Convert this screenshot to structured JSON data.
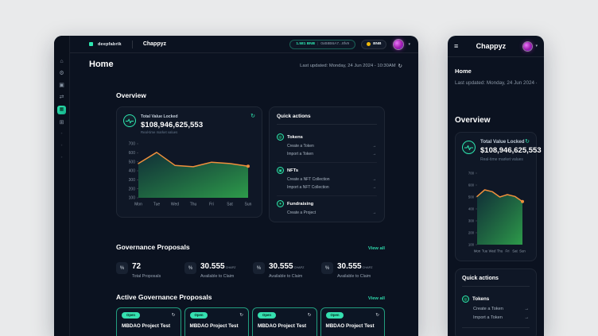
{
  "icons": {
    "home": "⌂",
    "settings": "⚙",
    "assets": "▣",
    "transfers": "⇄",
    "governance": "▦",
    "apps": "⊞",
    "dot": "•",
    "hamburger": "≡",
    "chevron_down": "▾",
    "refresh": "↻",
    "arrow_right": "→",
    "stat": "%",
    "token": "◎",
    "nft": "▣",
    "fundraising": "✦",
    "divider": "|"
  },
  "colors": {
    "accent": "#2EE6B0",
    "orange": "#EF8F3C",
    "bnb_gold": "#F0B90B",
    "frame_bg": "#0B1220",
    "card_bg": "#0F1726",
    "page_bg": "#E9EAEB"
  },
  "desktop": {
    "topbar": {
      "brand": "deepfabrik",
      "app": "Chappyz",
      "wallet_balance": "1.581 BNB",
      "wallet_address": "0xB8B6A7...8fv9",
      "network": "BNB"
    },
    "header": {
      "title": "Home",
      "last_updated": "Last updated: Monday, 24 Jun 2024 - 10:30AM"
    },
    "overview": {
      "title": "Overview",
      "tvl_label": "Total Value Locked",
      "tvl_value": "$108,946,625,553",
      "tvl_sub": "Real-time market values",
      "qa_title": "Quick actions",
      "groups": [
        {
          "name": "Tokens",
          "items": [
            "Create a Token",
            "Import a Token"
          ]
        },
        {
          "name": "NFTs",
          "items": [
            "Create a NFT Collection",
            "Import a NFT Collection"
          ]
        },
        {
          "name": "Fundraising",
          "items": [
            "Create a Project"
          ]
        }
      ]
    },
    "governance": {
      "title": "Governance Proposals",
      "view_all": "View all",
      "stats": [
        {
          "value": "72",
          "unit": "",
          "label": "Total Proposals"
        },
        {
          "value": "30.555",
          "unit": "CHAPZ",
          "label": "Available to Claim"
        },
        {
          "value": "30.555",
          "unit": "CHAPZ",
          "label": "Available to Claim"
        },
        {
          "value": "30.555",
          "unit": "CHAPZ",
          "label": "Available to Claim"
        }
      ]
    },
    "active": {
      "title": "Active Governance Proposals",
      "view_all": "View all",
      "cards": [
        {
          "status": "Open",
          "title": "MBDAO Project Test"
        },
        {
          "status": "Open",
          "title": "MBDAO Project Test"
        },
        {
          "status": "Open",
          "title": "MBDAO Project Test"
        },
        {
          "status": "Open",
          "title": "MBDAO Project Test"
        }
      ]
    }
  },
  "mobile": {
    "topbar": {
      "app": "Chappyz"
    },
    "header": {
      "title": "Home",
      "last_updated": "Last updated: Monday, 24 Jun 2024 -"
    },
    "overview_title": "Overview",
    "tvl_label": "Total Value Locked",
    "tvl_value": "$108,946,625,553",
    "tvl_sub": "Real-time market values",
    "qa_title": "Quick actions",
    "group": {
      "name": "Tokens",
      "items": [
        "Create a Token",
        "Import a Token"
      ]
    }
  },
  "chart_data": [
    {
      "type": "area",
      "title": "Total Value Locked - 7 day trend (desktop)",
      "x": [
        "Mon",
        "Tue",
        "Wed",
        "Thu",
        "Fri",
        "Sat",
        "Sun"
      ],
      "values": [
        480,
        605,
        460,
        445,
        495,
        480,
        450
      ],
      "ylim": [
        100,
        700
      ],
      "yticks": [
        100,
        200,
        300,
        400,
        500,
        600,
        700
      ],
      "xlabel": "",
      "ylabel": "",
      "grid": false,
      "legend": "none",
      "end_dot": true,
      "line_color": "#EF8F3C",
      "area_gradient": [
        "#11333B",
        "#2FA24C"
      ],
      "tick_font": 5
    },
    {
      "type": "area",
      "title": "Total Value Locked - 7 day trend (mobile)",
      "x": [
        "Mon",
        "Tue",
        "Wed",
        "Thu",
        "Fri",
        "Sat",
        "Sun"
      ],
      "values": [
        505,
        560,
        545,
        500,
        520,
        505,
        462
      ],
      "ylim": [
        100,
        700
      ],
      "yticks": [
        100,
        200,
        300,
        400,
        500,
        600,
        700
      ],
      "xlabel": "",
      "ylabel": "",
      "grid": false,
      "legend": "none",
      "end_dot": true,
      "line_color": "#EF8F3C",
      "area_gradient": [
        "#11333B",
        "#2FA24C"
      ],
      "tick_font": 4.3
    }
  ]
}
